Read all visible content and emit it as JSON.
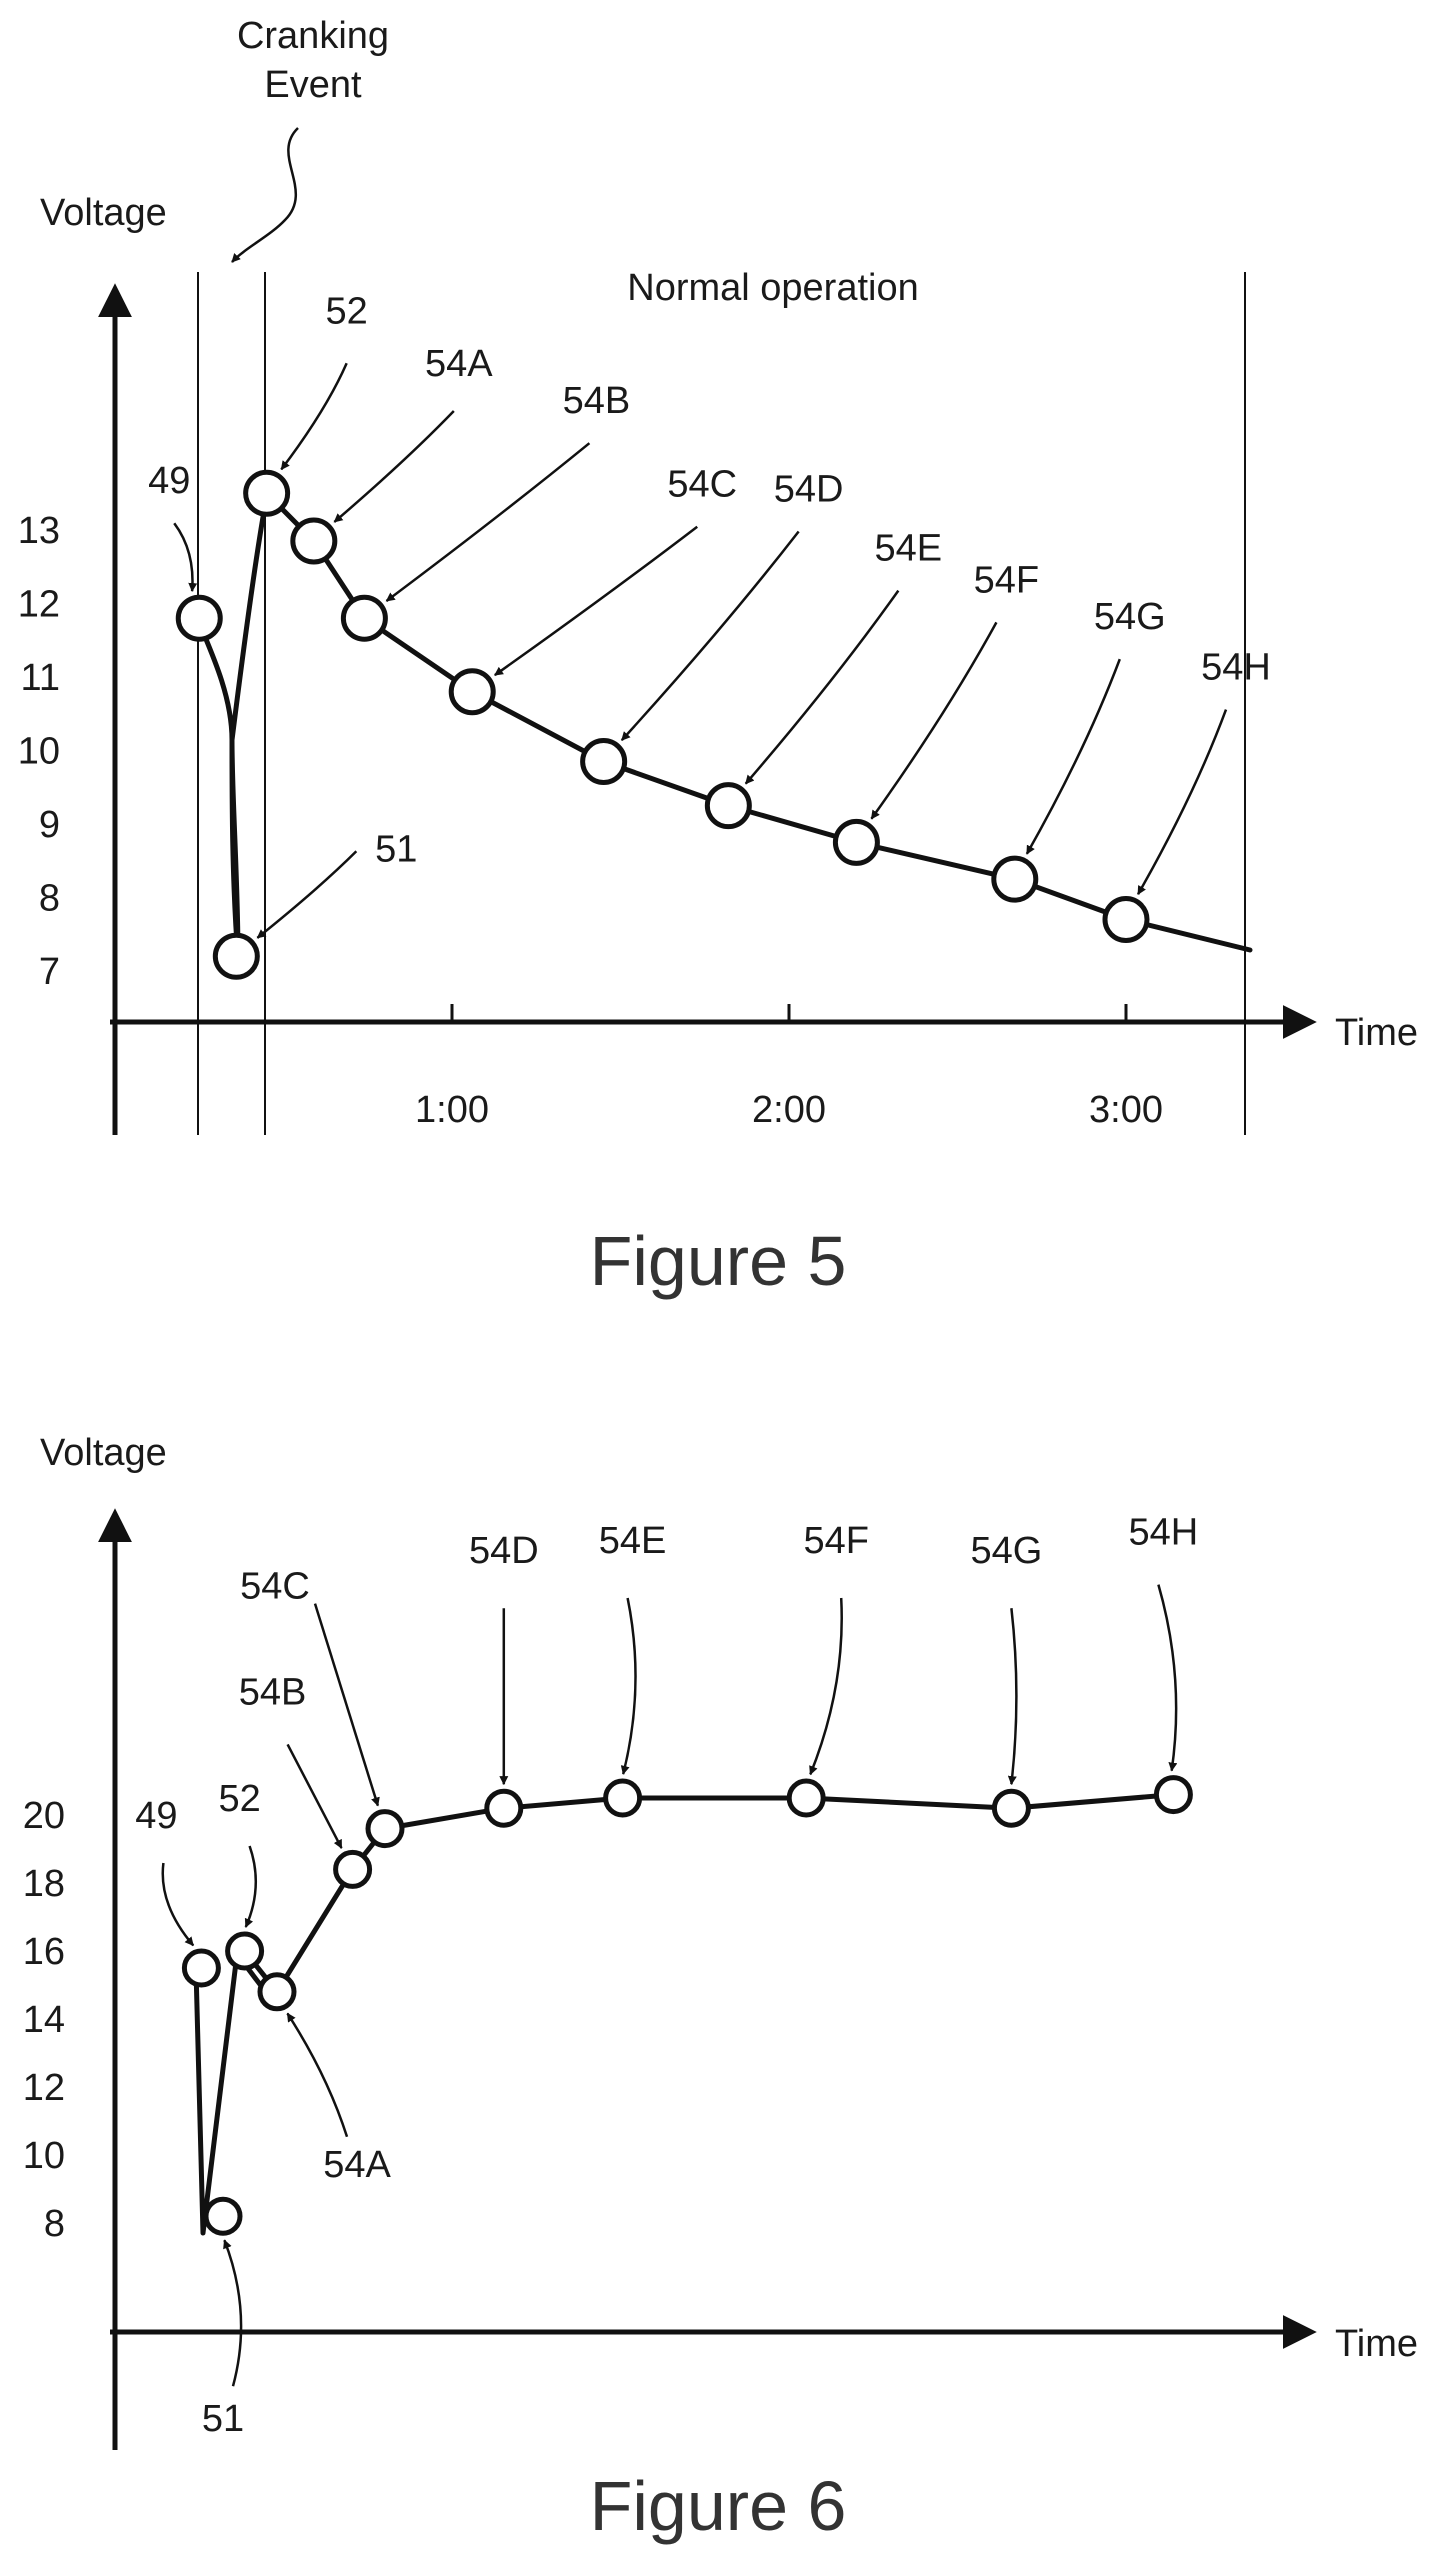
{
  "chart_data": [
    {
      "type": "line",
      "title": "",
      "caption": "Figure 5",
      "xlabel": "Time",
      "ylabel": "Voltage",
      "annotations": {
        "cranking": [
          "Cranking",
          "Event"
        ],
        "normal": "Normal operation"
      },
      "ytick_labels": [
        "13",
        "12",
        "11",
        "10",
        "9",
        "8",
        "7"
      ],
      "xtick_labels": [
        "1:00",
        "2:00",
        "3:00"
      ],
      "ylim": [
        6.3,
        16.5
      ],
      "xlim_minutes": [
        0,
        3.5
      ],
      "points": [
        {
          "label": "49",
          "x_min": 0.25,
          "y": 11.8
        },
        {
          "label": "51",
          "x_min": 0.36,
          "y": 7.2
        },
        {
          "label": "52",
          "x_min": 0.45,
          "y": 13.5
        },
        {
          "label": "54A",
          "x_min": 0.59,
          "y": 12.85
        },
        {
          "label": "54B",
          "x_min": 0.74,
          "y": 11.8
        },
        {
          "label": "54C",
          "x_min": 1.06,
          "y": 10.8
        },
        {
          "label": "54D",
          "x_min": 1.45,
          "y": 9.85
        },
        {
          "label": "54E",
          "x_min": 1.82,
          "y": 9.25
        },
        {
          "label": "54F",
          "x_min": 2.2,
          "y": 8.75
        },
        {
          "label": "54G",
          "x_min": 2.67,
          "y": 8.25
        },
        {
          "label": "54H",
          "x_min": 3.0,
          "y": 7.7
        }
      ],
      "grid": false,
      "legend": "none"
    },
    {
      "type": "line",
      "title": "",
      "caption": "Figure 6",
      "xlabel": "Time",
      "ylabel": "Voltage",
      "ytick_labels": [
        "20",
        "18",
        "16",
        "14",
        "12",
        "10",
        "8"
      ],
      "ylim": [
        5,
        30
      ],
      "points": [
        {
          "label": "49",
          "x_rel": 0.08,
          "y": 15.5
        },
        {
          "label": "51",
          "x_rel": 0.1,
          "y": 8.2
        },
        {
          "label": "52",
          "x_rel": 0.12,
          "y": 16.0
        },
        {
          "label": "54A",
          "x_rel": 0.15,
          "y": 14.8
        },
        {
          "label": "54B",
          "x_rel": 0.22,
          "y": 18.4
        },
        {
          "label": "54C",
          "x_rel": 0.25,
          "y": 19.6
        },
        {
          "label": "54D",
          "x_rel": 0.36,
          "y": 20.2
        },
        {
          "label": "54E",
          "x_rel": 0.47,
          "y": 20.5
        },
        {
          "label": "54F",
          "x_rel": 0.64,
          "y": 20.5
        },
        {
          "label": "54G",
          "x_rel": 0.83,
          "y": 20.2
        },
        {
          "label": "54H",
          "x_rel": 0.98,
          "y": 20.6
        }
      ],
      "grid": false,
      "legend": "none"
    }
  ]
}
